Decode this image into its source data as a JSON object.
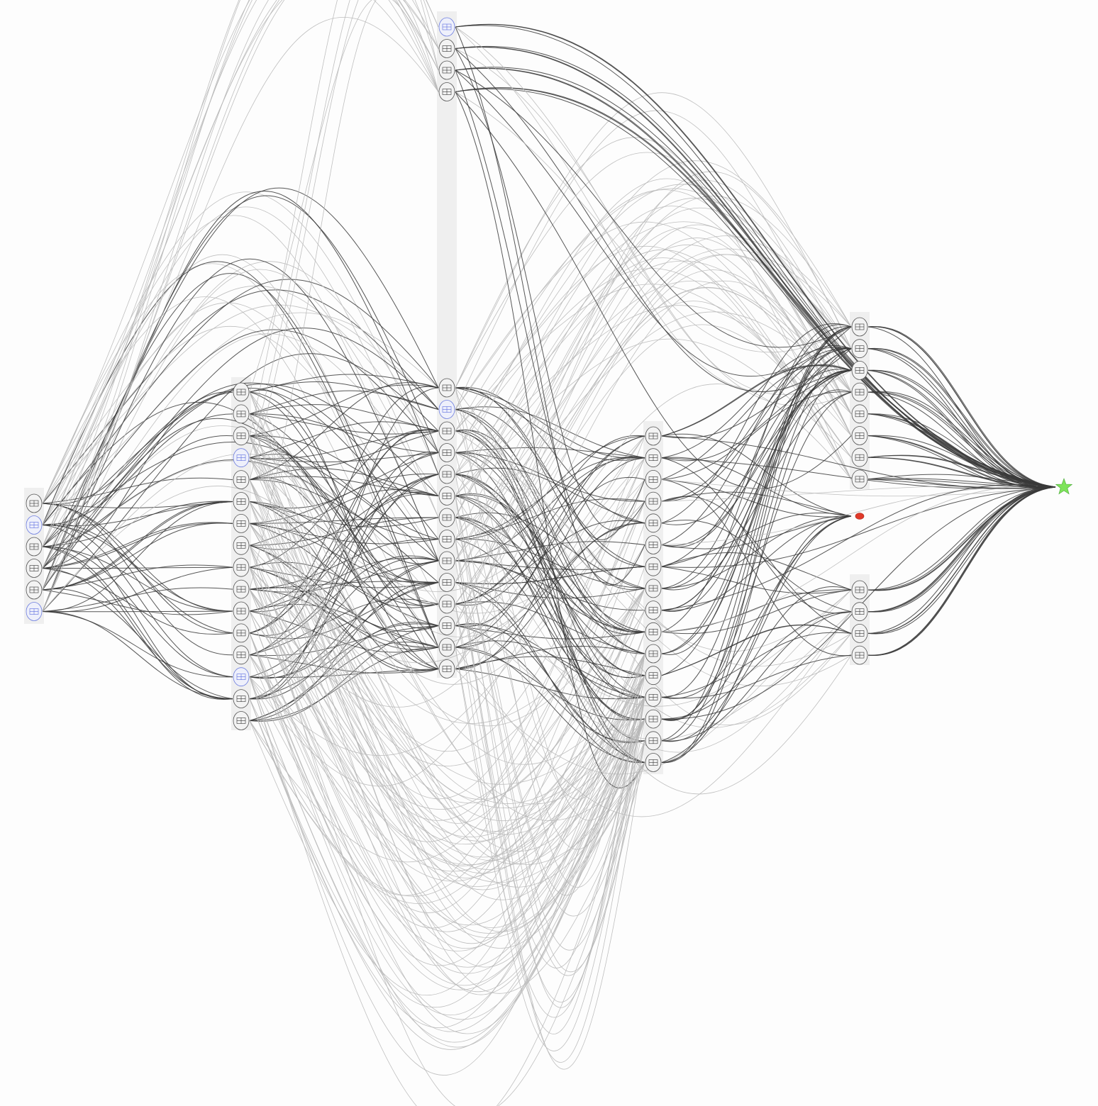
{
  "diagram": {
    "type": "layered-graph",
    "direction": "left-to-right",
    "colors": {
      "background": "#fdfdfd",
      "layer_panel": "#efefef",
      "node_fill": "#f3f3f3",
      "node_stroke": "#555555",
      "highlight_stroke": "#6f7fe0",
      "edge_light": "#b8b8b8",
      "edge_dark": "#3a3a3a",
      "target_node": "#7ee35a",
      "error_node": "#e03a2a"
    },
    "layers": [
      {
        "id": "layer-1",
        "node_count": 6,
        "highlighted": [
          1,
          5
        ]
      },
      {
        "id": "layer-2",
        "node_count": 16,
        "highlighted": [
          3,
          13
        ]
      },
      {
        "id": "layer-3-top",
        "node_count": 4,
        "highlighted": [
          0
        ]
      },
      {
        "id": "layer-3",
        "node_count": 14,
        "highlighted": [
          1
        ]
      },
      {
        "id": "layer-4",
        "node_count": 16,
        "highlighted": []
      },
      {
        "id": "layer-5-top",
        "node_count": 8,
        "highlighted": []
      },
      {
        "id": "layer-5-bottom",
        "node_count": 4,
        "highlighted": []
      }
    ],
    "special_nodes": [
      {
        "id": "sink",
        "shape": "star-icon",
        "color": "#7ee35a"
      },
      {
        "id": "error",
        "shape": "ellipse",
        "color": "#e03a2a"
      }
    ]
  }
}
